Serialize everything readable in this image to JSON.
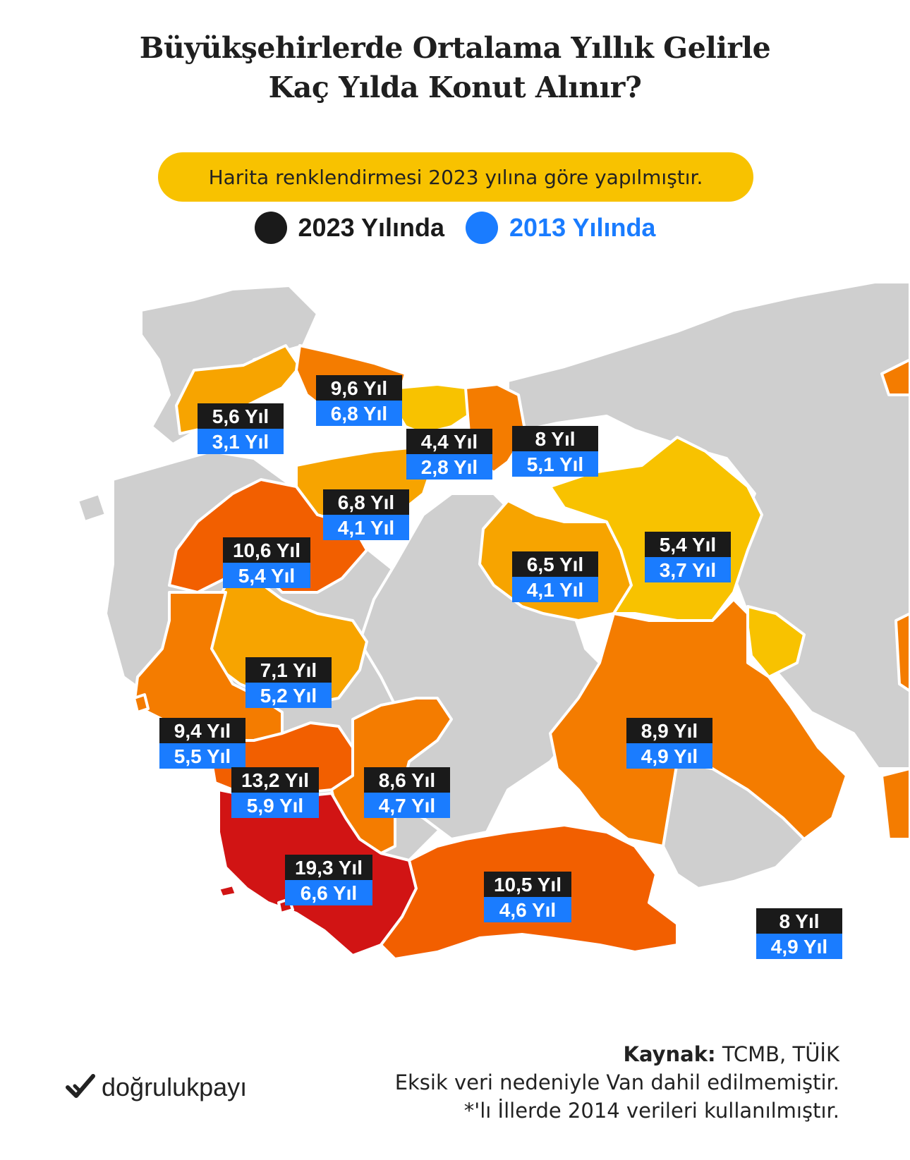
{
  "title": {
    "line1": "Büyükşehirlerde Ortalama Yıllık Gelirle",
    "line2": "Kaç Yılda Konut Alınır?"
  },
  "note": "Harita renklendirmesi 2023 yılına göre yapılmıştır.",
  "legend": {
    "item1": {
      "label": "2023 Yılında",
      "color": "#1a1a1a"
    },
    "item2": {
      "label": "2013 Yılında",
      "color": "#1a7cff"
    }
  },
  "colors": {
    "bg_province": "#cfcfcf",
    "scale_low": "#f8c200",
    "scale_mid": "#f7a400",
    "scale_high": "#f47c00",
    "scale_higher": "#ef5a00",
    "scale_max": "#d11414",
    "label_2023_bg": "#1a1a1a",
    "label_2013_bg": "#1a7cff"
  },
  "provinces": [
    {
      "id": "edirne-tekirdag",
      "y2023": "5,6 Yıl",
      "y2013": "3,1 Yıl"
    },
    {
      "id": "istanbul",
      "y2023": "9,6 Yıl",
      "y2013": "6,8 Yıl"
    },
    {
      "id": "kocaeli",
      "y2023": "4,4 Yıl",
      "y2013": "2,8 Yıl"
    },
    {
      "id": "sakarya",
      "y2023": "8 Yıl",
      "y2013": "5,1 Yıl"
    },
    {
      "id": "bursa",
      "y2023": "6,8 Yıl",
      "y2013": "4,1 Yıl"
    },
    {
      "id": "balikesir",
      "y2023": "10,6 Yıl",
      "y2013": "5,4 Yıl"
    },
    {
      "id": "ankara",
      "y2023": "6,5 Yıl",
      "y2013": "4,1 Yıl"
    },
    {
      "id": "kirikkale-kirsehir",
      "y2023": "5,4 Yıl",
      "y2013": "3,7 Yıl"
    },
    {
      "id": "manisa",
      "y2023": "7,1 Yıl",
      "y2013": "5,2 Yıl"
    },
    {
      "id": "izmir",
      "y2023": "9,4 Yıl",
      "y2013": "5,5 Yıl"
    },
    {
      "id": "aydin",
      "y2023": "13,2 Yıl",
      "y2013": "5,9 Yıl"
    },
    {
      "id": "denizli",
      "y2023": "8,6 Yıl",
      "y2013": "4,7 Yıl"
    },
    {
      "id": "konya",
      "y2023": "8,9 Yıl",
      "y2013": "4,9 Yıl"
    },
    {
      "id": "mugla",
      "y2023": "19,3 Yıl",
      "y2013": "6,6 Yıl"
    },
    {
      "id": "antalya",
      "y2023": "10,5 Yıl",
      "y2013": "4,6 Yıl"
    },
    {
      "id": "mersin",
      "y2023": "8 Yıl",
      "y2013": "4,9 Yıl"
    }
  ],
  "source": {
    "label": "Kaynak:",
    "value": "TCMB, TÜİK",
    "note1": "Eksik veri nedeniyle Van dahil edilmemiştir.",
    "note2": "*'lı İllerde 2014 verileri kullanılmıştır."
  },
  "logo": {
    "text": "doğrulukpayı",
    "icon": "check-logo-icon"
  }
}
